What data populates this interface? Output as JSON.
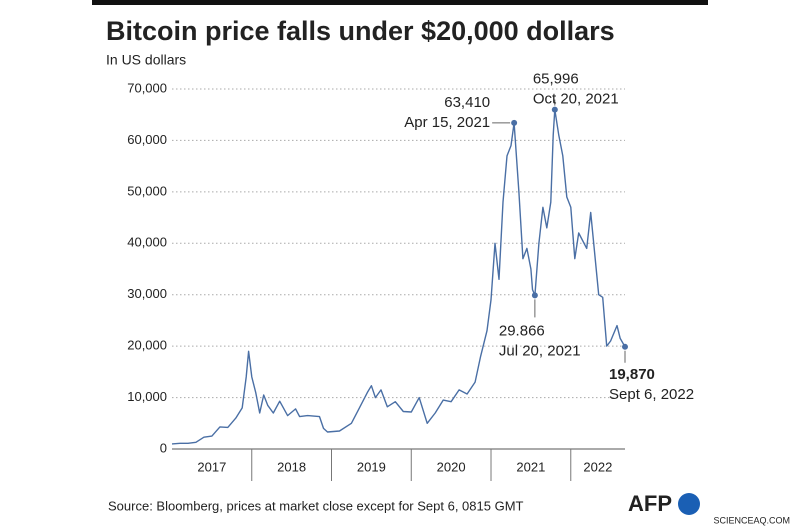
{
  "chart_data": {
    "type": "line",
    "title": "Bitcoin price falls under $20,000 dollars",
    "subtitle": "In US dollars",
    "source": "Source: Bloomberg, prices at market close except for Sept 6, 0815 GMT",
    "logo": "AFP",
    "watermark": "SCIENCEAQ.COM",
    "xlim": [
      2017.0,
      2022.68
    ],
    "xticks": [
      2017,
      2018,
      2019,
      2020,
      2021,
      2022
    ],
    "ylim": [
      0,
      70000
    ],
    "yticks": [
      0,
      {
        "value": 10000,
        "label": "10,000"
      },
      {
        "value": 20000,
        "label": "20,000"
      },
      {
        "value": 30000,
        "label": "30,000"
      },
      {
        "value": 40000,
        "label": "40,000"
      },
      {
        "value": 50000,
        "label": "50,000"
      },
      {
        "value": 60000,
        "label": "60,000"
      },
      {
        "value": 70000,
        "label": "70,000"
      }
    ],
    "grid": true,
    "series": [
      {
        "name": "Bitcoin",
        "color": "#4a6fa5",
        "x": [
          2017.0,
          2017.1,
          2017.2,
          2017.3,
          2017.4,
          2017.5,
          2017.6,
          2017.7,
          2017.8,
          2017.88,
          2017.93,
          2017.96,
          2018.0,
          2018.05,
          2018.1,
          2018.15,
          2018.2,
          2018.27,
          2018.35,
          2018.45,
          2018.55,
          2018.6,
          2018.7,
          2018.85,
          2018.9,
          2018.95,
          2019.1,
          2019.25,
          2019.35,
          2019.45,
          2019.5,
          2019.55,
          2019.62,
          2019.7,
          2019.8,
          2019.9,
          2020.0,
          2020.1,
          2020.2,
          2020.3,
          2020.4,
          2020.5,
          2020.6,
          2020.7,
          2020.8,
          2020.87,
          2020.95,
          2021.0,
          2021.05,
          2021.1,
          2021.15,
          2021.2,
          2021.25,
          2021.29,
          2021.35,
          2021.4,
          2021.45,
          2021.5,
          2021.52,
          2021.55,
          2021.6,
          2021.65,
          2021.7,
          2021.75,
          2021.78,
          2021.8,
          2021.85,
          2021.9,
          2021.95,
          2022.0,
          2022.05,
          2022.1,
          2022.2,
          2022.25,
          2022.3,
          2022.35,
          2022.4,
          2022.45,
          2022.5,
          2022.58,
          2022.62,
          2022.68
        ],
        "values": [
          1000,
          1100,
          1100,
          1300,
          2300,
          2500,
          4300,
          4200,
          6000,
          8000,
          14000,
          19000,
          14000,
          11000,
          7000,
          10500,
          8500,
          7000,
          9300,
          6500,
          7800,
          6300,
          6500,
          6300,
          4000,
          3300,
          3500,
          5000,
          8000,
          11000,
          12300,
          10000,
          11500,
          8200,
          9200,
          7300,
          7200,
          10000,
          5000,
          7000,
          9500,
          9200,
          11500,
          10700,
          13000,
          18000,
          23000,
          29000,
          40000,
          33000,
          48000,
          57000,
          59000,
          63410,
          50000,
          37000,
          39000,
          35000,
          31000,
          29866,
          40000,
          47000,
          43000,
          48000,
          61000,
          65996,
          61000,
          57000,
          49000,
          47000,
          37000,
          42000,
          39000,
          46000,
          38000,
          30000,
          29500,
          20000,
          21000,
          24000,
          21500,
          19870
        ]
      }
    ],
    "annotations": [
      {
        "x": 2021.29,
        "value": 63410,
        "label": "63,410",
        "date": "Apr 15, 2021"
      },
      {
        "x": 2021.8,
        "value": 65996,
        "label": "65,996",
        "date": "Oct 20, 2021"
      },
      {
        "x": 2021.55,
        "value": 29866,
        "label": "29.866",
        "date": "Jul 20, 2021"
      },
      {
        "x": 2022.68,
        "value": 19870,
        "label": "19,870",
        "date": "Sept 6, 2022"
      }
    ]
  }
}
